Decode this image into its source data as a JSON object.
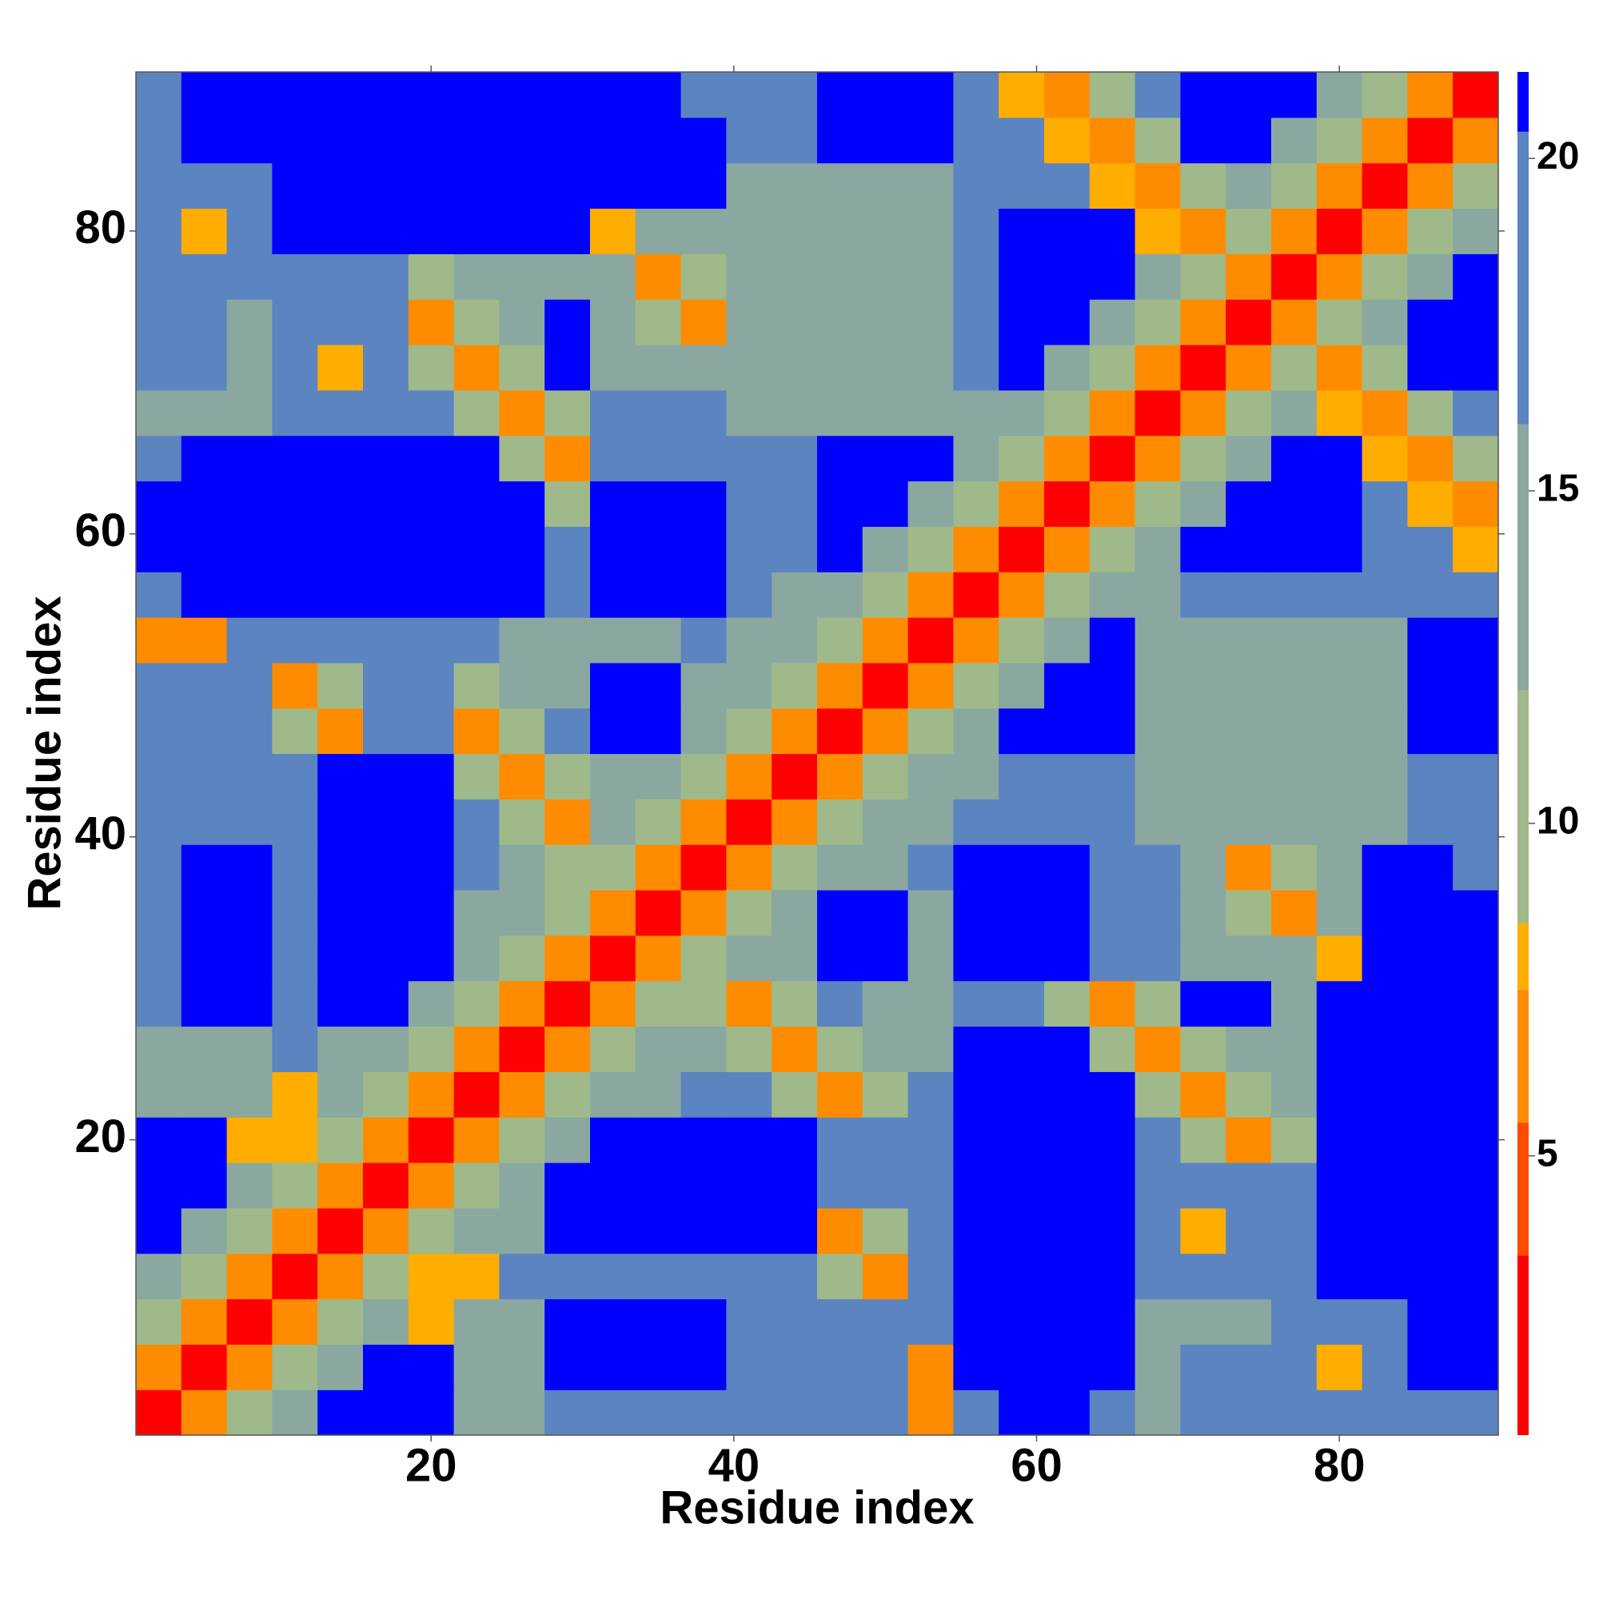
{
  "chart_data": {
    "type": "heatmap",
    "xlabel": "Residue index",
    "ylabel": "Residue index",
    "x": [
      2,
      5,
      8,
      11,
      14,
      17,
      20,
      23,
      26,
      29,
      32,
      35,
      38,
      41,
      44,
      47,
      50,
      53,
      56,
      59,
      62,
      65,
      68,
      71,
      74,
      77,
      80,
      83,
      86,
      89
    ],
    "y": [
      2,
      5,
      8,
      11,
      14,
      17,
      20,
      23,
      26,
      29,
      32,
      35,
      38,
      41,
      44,
      47,
      50,
      53,
      56,
      59,
      62,
      65,
      68,
      71,
      74,
      77,
      80,
      83,
      86,
      89
    ],
    "xlim": [
      0.5,
      90.5
    ],
    "ylim": [
      0.5,
      90.5
    ],
    "xticks": [
      20,
      40,
      60,
      80
    ],
    "yticks": [
      20,
      40,
      60,
      80
    ],
    "z": [
      [
        3,
        6,
        10,
        13,
        21,
        21,
        21,
        12,
        12,
        19,
        19,
        19,
        19,
        17,
        17,
        17,
        17,
        7,
        17,
        21,
        21,
        17,
        12,
        19,
        19,
        19,
        19,
        17,
        17,
        17
      ],
      [
        6,
        3,
        6,
        10,
        13,
        21,
        21,
        12,
        12,
        21,
        21,
        21,
        21,
        19,
        19,
        19,
        17,
        7,
        21,
        21,
        21,
        21,
        12,
        19,
        19,
        19,
        8,
        17,
        21,
        21
      ],
      [
        10,
        6,
        3,
        6,
        10,
        13,
        8,
        12,
        12,
        21,
        21,
        21,
        21,
        19,
        19,
        19,
        17,
        19,
        21,
        21,
        21,
        21,
        12,
        12,
        12,
        17,
        17,
        17,
        21,
        21
      ],
      [
        13,
        10,
        6,
        3,
        6,
        10,
        8,
        8,
        17,
        17,
        17,
        17,
        19,
        19,
        19,
        10,
        7,
        19,
        21,
        21,
        21,
        21,
        17,
        17,
        17,
        17,
        21,
        21,
        21,
        21
      ],
      [
        21,
        13,
        10,
        6,
        3,
        6,
        10,
        13,
        15,
        21,
        21,
        21,
        21,
        21,
        21,
        7,
        10,
        19,
        21,
        21,
        21,
        21,
        17,
        8,
        17,
        17,
        21,
        21,
        21,
        21
      ],
      [
        21,
        21,
        13,
        10,
        6,
        3,
        6,
        10,
        13,
        21,
        21,
        21,
        21,
        21,
        21,
        17,
        17,
        19,
        21,
        21,
        21,
        21,
        17,
        17,
        17,
        17,
        21,
        21,
        21,
        21
      ],
      [
        21,
        21,
        8,
        8,
        10,
        6,
        3,
        6,
        10,
        13,
        21,
        21,
        21,
        21,
        21,
        17,
        17,
        19,
        21,
        21,
        21,
        21,
        17,
        10,
        7,
        10,
        21,
        21,
        21,
        21
      ],
      [
        12,
        12,
        12,
        8,
        13,
        10,
        6,
        3,
        6,
        10,
        13,
        15,
        17,
        17,
        10,
        7,
        10,
        19,
        21,
        21,
        21,
        21,
        10,
        7,
        10,
        14,
        21,
        21,
        21,
        21
      ],
      [
        12,
        12,
        12,
        17,
        15,
        13,
        10,
        6,
        3,
        6,
        10,
        13,
        15,
        10,
        7,
        10,
        13,
        13,
        21,
        21,
        21,
        10,
        7,
        10,
        14,
        14,
        21,
        21,
        21,
        21
      ],
      [
        19,
        21,
        21,
        17,
        21,
        21,
        13,
        10,
        6,
        3,
        6,
        10,
        10,
        7,
        10,
        17,
        13,
        13,
        17,
        17,
        10,
        7,
        10,
        21,
        21,
        14,
        21,
        21,
        21,
        21
      ],
      [
        19,
        21,
        21,
        17,
        21,
        21,
        21,
        13,
        10,
        6,
        3,
        6,
        10,
        13,
        15,
        21,
        21,
        13,
        21,
        21,
        21,
        17,
        17,
        14,
        14,
        14,
        8,
        21,
        21,
        21
      ],
      [
        19,
        21,
        21,
        17,
        21,
        21,
        21,
        15,
        13,
        10,
        6,
        3,
        6,
        10,
        13,
        21,
        21,
        13,
        21,
        21,
        21,
        17,
        17,
        14,
        10,
        7,
        14,
        21,
        21,
        21
      ],
      [
        19,
        21,
        21,
        19,
        21,
        21,
        21,
        17,
        15,
        10,
        10,
        6,
        3,
        6,
        10,
        13,
        15,
        17,
        21,
        21,
        21,
        17,
        17,
        14,
        7,
        10,
        14,
        21,
        21,
        19
      ],
      [
        17,
        19,
        19,
        19,
        21,
        21,
        21,
        17,
        10,
        7,
        13,
        10,
        6,
        3,
        6,
        10,
        13,
        15,
        17,
        19,
        19,
        17,
        14,
        14,
        14,
        14,
        14,
        14,
        17,
        19
      ],
      [
        17,
        19,
        19,
        19,
        21,
        21,
        21,
        10,
        7,
        10,
        15,
        13,
        10,
        6,
        3,
        6,
        10,
        13,
        15,
        17,
        17,
        17,
        14,
        14,
        14,
        14,
        14,
        14,
        17,
        19
      ],
      [
        17,
        19,
        19,
        10,
        7,
        17,
        17,
        7,
        10,
        17,
        21,
        21,
        13,
        10,
        6,
        3,
        6,
        10,
        13,
        21,
        21,
        21,
        14,
        14,
        14,
        14,
        14,
        14,
        21,
        21
      ],
      [
        17,
        17,
        17,
        7,
        10,
        17,
        17,
        10,
        13,
        13,
        21,
        21,
        15,
        13,
        10,
        6,
        3,
        6,
        10,
        13,
        21,
        21,
        14,
        14,
        14,
        14,
        14,
        14,
        21,
        21
      ],
      [
        7,
        7,
        19,
        19,
        19,
        19,
        19,
        19,
        13,
        13,
        13,
        13,
        17,
        15,
        13,
        10,
        6,
        3,
        6,
        10,
        13,
        21,
        14,
        14,
        14,
        14,
        14,
        14,
        21,
        21
      ],
      [
        17,
        21,
        21,
        21,
        21,
        21,
        21,
        21,
        21,
        17,
        21,
        21,
        21,
        17,
        15,
        13,
        10,
        6,
        3,
        6,
        10,
        13,
        15,
        19,
        19,
        19,
        19,
        17,
        17,
        17
      ],
      [
        21,
        21,
        21,
        21,
        21,
        21,
        21,
        21,
        21,
        17,
        21,
        21,
        21,
        19,
        17,
        21,
        13,
        10,
        6,
        3,
        6,
        10,
        13,
        21,
        21,
        21,
        21,
        17,
        17,
        8
      ],
      [
        21,
        21,
        21,
        21,
        21,
        21,
        21,
        21,
        21,
        10,
        21,
        21,
        21,
        19,
        17,
        21,
        21,
        13,
        10,
        6,
        3,
        6,
        10,
        13,
        21,
        21,
        21,
        17,
        8,
        7
      ],
      [
        17,
        21,
        21,
        21,
        21,
        21,
        21,
        21,
        10,
        7,
        17,
        17,
        17,
        17,
        17,
        21,
        21,
        21,
        13,
        10,
        6,
        3,
        6,
        10,
        13,
        21,
        21,
        8,
        7,
        10
      ],
      [
        12,
        12,
        12,
        17,
        17,
        17,
        17,
        10,
        7,
        10,
        17,
        17,
        17,
        14,
        14,
        14,
        14,
        14,
        15,
        13,
        10,
        6,
        3,
        6,
        10,
        13,
        8,
        7,
        10,
        19
      ],
      [
        19,
        19,
        12,
        17,
        8,
        17,
        10,
        7,
        10,
        21,
        14,
        14,
        14,
        14,
        14,
        14,
        14,
        14,
        19,
        21,
        13,
        10,
        6,
        3,
        6,
        10,
        7,
        10,
        21,
        21
      ],
      [
        19,
        19,
        12,
        17,
        17,
        17,
        7,
        10,
        14,
        21,
        14,
        10,
        7,
        14,
        14,
        14,
        14,
        14,
        19,
        21,
        21,
        13,
        10,
        6,
        3,
        6,
        10,
        13,
        21,
        21
      ],
      [
        19,
        19,
        17,
        17,
        17,
        17,
        10,
        14,
        14,
        14,
        14,
        7,
        10,
        14,
        14,
        14,
        14,
        14,
        19,
        21,
        21,
        21,
        13,
        10,
        6,
        3,
        6,
        10,
        13,
        21
      ],
      [
        19,
        8,
        17,
        21,
        21,
        21,
        21,
        21,
        21,
        21,
        8,
        14,
        14,
        14,
        14,
        14,
        14,
        14,
        19,
        21,
        21,
        21,
        8,
        7,
        10,
        6,
        3,
        6,
        10,
        13
      ],
      [
        17,
        17,
        17,
        21,
        21,
        21,
        21,
        21,
        21,
        21,
        21,
        21,
        21,
        14,
        14,
        14,
        14,
        14,
        17,
        17,
        17,
        8,
        7,
        10,
        13,
        10,
        6,
        3,
        6,
        10
      ],
      [
        17,
        21,
        21,
        21,
        21,
        21,
        21,
        21,
        21,
        21,
        21,
        21,
        21,
        17,
        17,
        21,
        21,
        21,
        17,
        17,
        8,
        7,
        10,
        21,
        21,
        13,
        10,
        6,
        3,
        6
      ],
      [
        17,
        21,
        21,
        21,
        21,
        21,
        21,
        21,
        21,
        21,
        21,
        21,
        19,
        19,
        19,
        21,
        21,
        21,
        17,
        8,
        7,
        10,
        19,
        21,
        21,
        21,
        13,
        10,
        6,
        3
      ]
    ],
    "colorbar": {
      "lim": [
        0.8,
        21.3
      ],
      "ticks": [
        5,
        10,
        15,
        20
      ],
      "bounds": [
        0.8,
        3.5,
        5.5,
        7.5,
        8.5,
        12,
        16,
        20.4,
        21.3
      ],
      "colors": [
        "#ff0000",
        "#ff4a00",
        "#ff8c00",
        "#ffad00",
        "#9fb98a",
        "#8aa8a0",
        "#5b84c0",
        "#0000ff"
      ]
    }
  }
}
